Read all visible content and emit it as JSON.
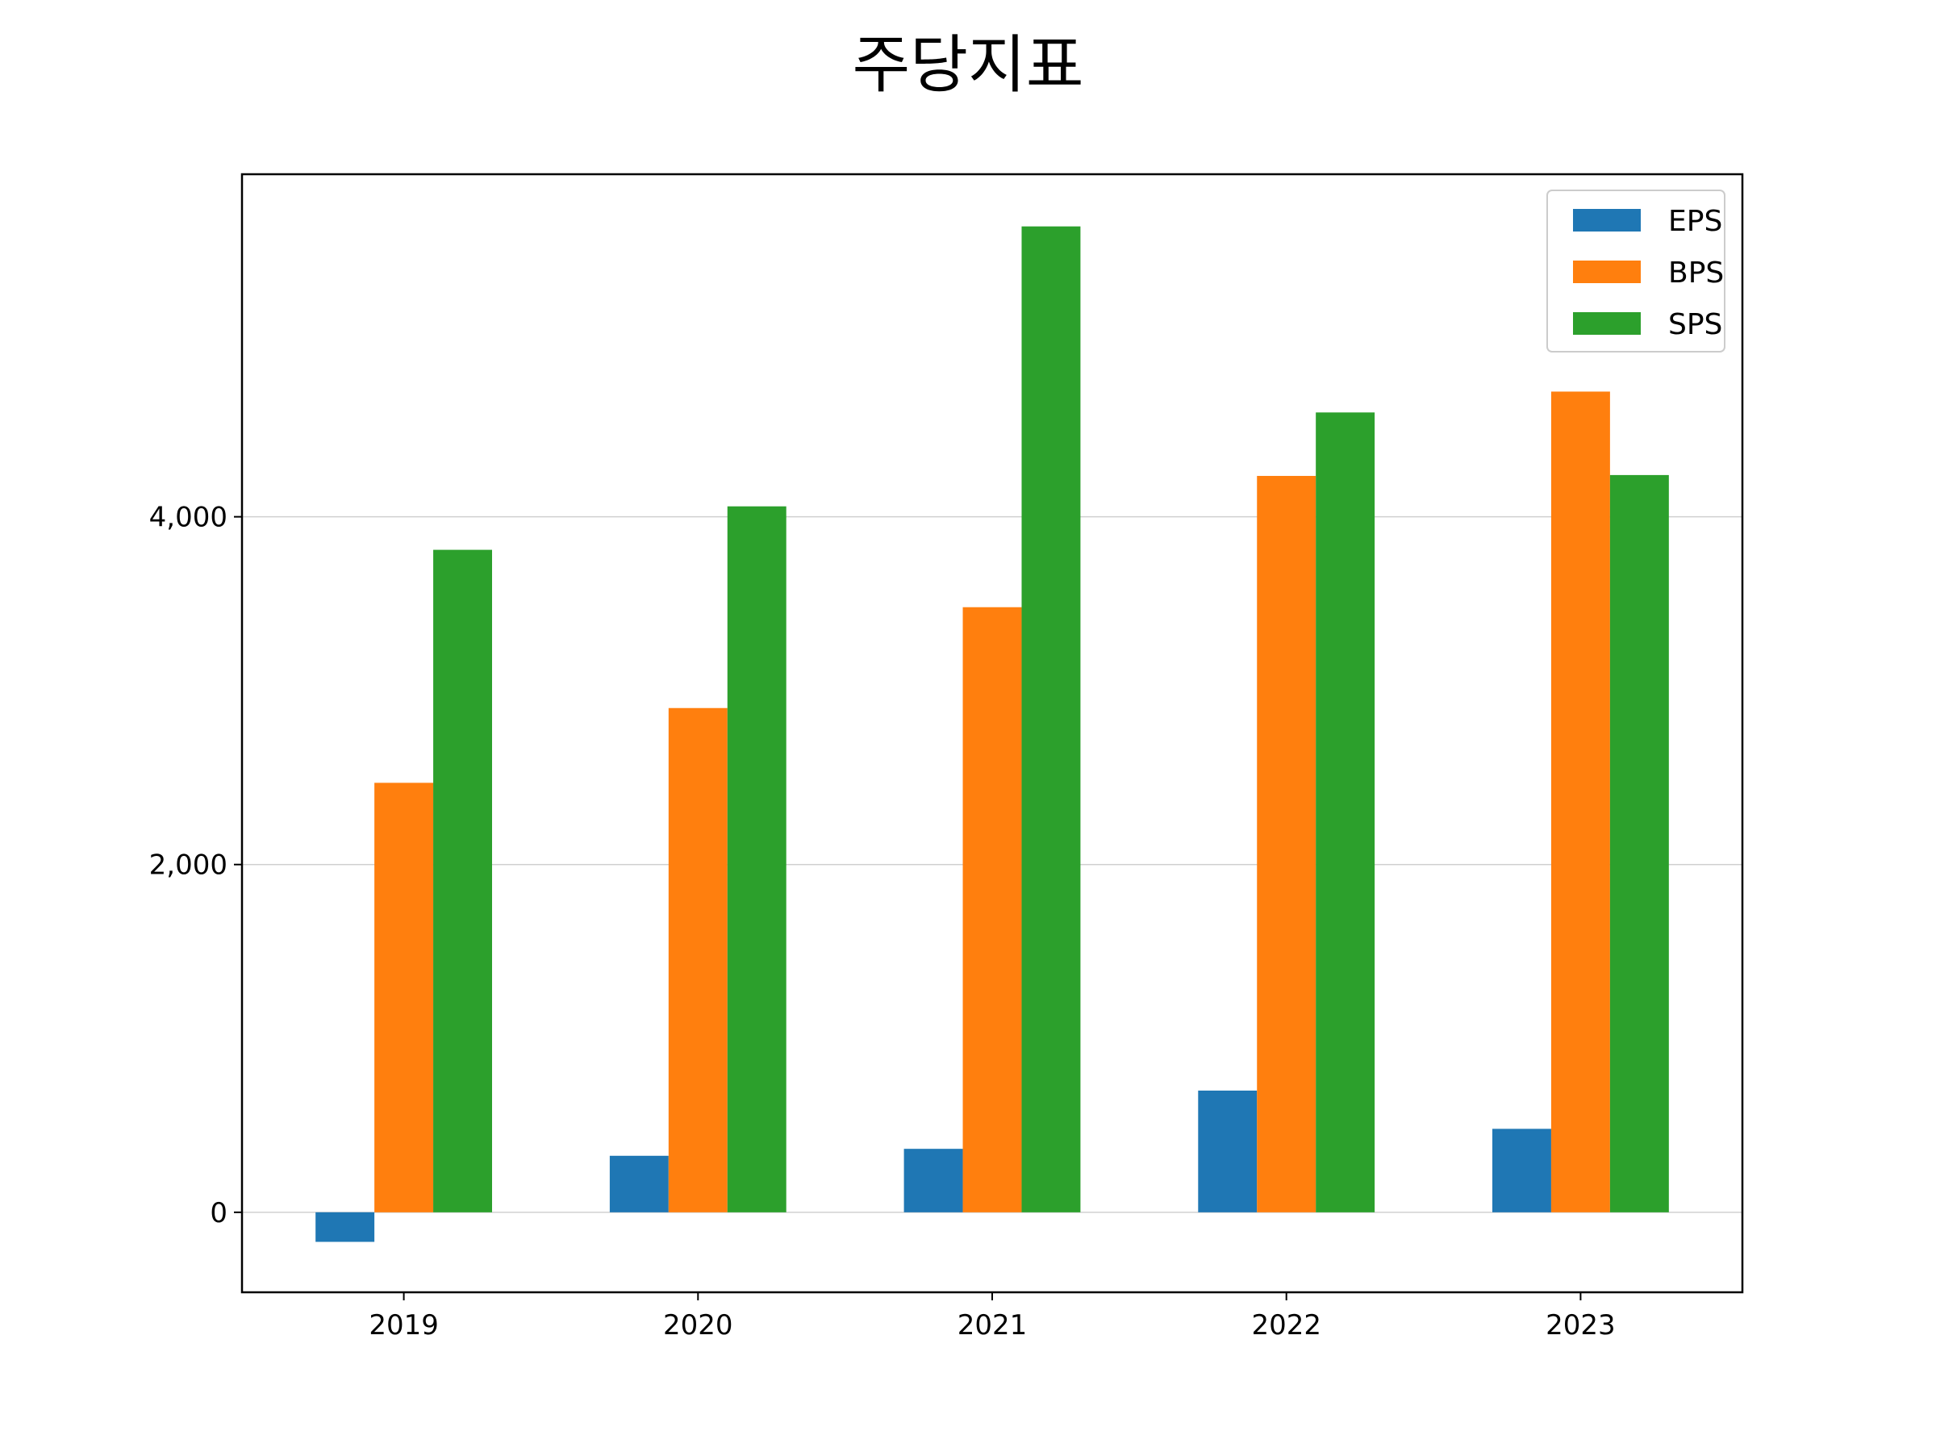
{
  "chart_data": {
    "type": "bar",
    "title": "주당지표",
    "xlabel": "",
    "ylabel": "",
    "categories": [
      "2019",
      "2020",
      "2021",
      "2022",
      "2023"
    ],
    "series": [
      {
        "name": "EPS",
        "color": "#1f77b4",
        "values": [
          -170,
          325,
          365,
          700,
          480
        ]
      },
      {
        "name": "BPS",
        "color": "#ff7f0e",
        "values": [
          2470,
          2900,
          3480,
          4235,
          4720
        ]
      },
      {
        "name": "SPS",
        "color": "#2ca02c",
        "values": [
          3810,
          4060,
          5670,
          4600,
          4240
        ]
      }
    ],
    "ylim": [
      -460,
      5970
    ],
    "yticks": [
      0,
      2000,
      4000
    ],
    "ytick_labels": [
      "0",
      "2,000",
      "4,000"
    ],
    "grid": "y",
    "legend": "top-right"
  }
}
